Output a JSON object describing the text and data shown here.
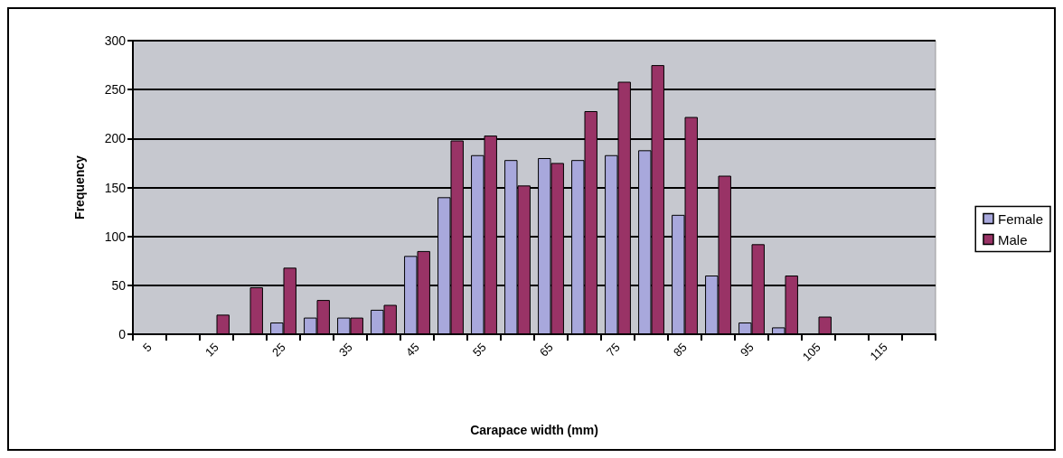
{
  "chart_data": {
    "type": "bar",
    "xlabel": "Carapace width (mm)",
    "ylabel": "Frequency",
    "categories": [
      "5",
      null,
      "15",
      null,
      "25",
      null,
      "35",
      null,
      "45",
      null,
      "55",
      null,
      "65",
      null,
      "75",
      null,
      "85",
      null,
      "95",
      null,
      "105",
      null,
      "115",
      null
    ],
    "series": [
      {
        "name": "Female",
        "color": "#a8a8dc",
        "values": [
          null,
          null,
          null,
          null,
          12,
          17,
          17,
          25,
          80,
          140,
          183,
          178,
          180,
          178,
          183,
          188,
          122,
          60,
          12,
          7,
          null,
          null,
          null,
          null
        ]
      },
      {
        "name": "Male",
        "color": "#993366",
        "values": [
          null,
          null,
          20,
          48,
          68,
          35,
          17,
          30,
          85,
          198,
          203,
          152,
          175,
          228,
          258,
          275,
          222,
          162,
          92,
          60,
          18,
          null,
          null,
          null
        ]
      }
    ],
    "ylim": [
      0,
      300
    ],
    "yticks": [
      0,
      50,
      100,
      150,
      200,
      250,
      300
    ],
    "grid": "y",
    "legend": "right"
  }
}
